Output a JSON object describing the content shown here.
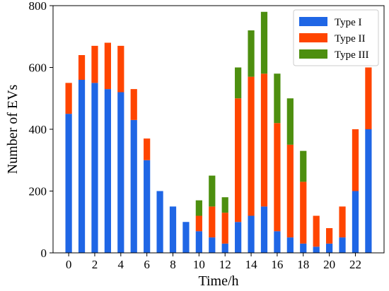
{
  "chart_data": {
    "type": "bar",
    "stacked": true,
    "x": [
      0,
      1,
      2,
      3,
      4,
      5,
      6,
      7,
      8,
      9,
      10,
      11,
      12,
      13,
      14,
      15,
      16,
      17,
      18,
      19,
      20,
      21,
      22,
      23
    ],
    "series": [
      {
        "name": "Type I",
        "color": "#1f66e5",
        "values": [
          450,
          560,
          550,
          530,
          520,
          430,
          300,
          200,
          150,
          100,
          70,
          50,
          30,
          100,
          120,
          150,
          70,
          50,
          30,
          20,
          30,
          50,
          200,
          400
        ]
      },
      {
        "name": "Type II",
        "color": "#ff4500",
        "values": [
          100,
          80,
          120,
          150,
          150,
          100,
          70,
          0,
          0,
          0,
          50,
          100,
          100,
          400,
          450,
          430,
          350,
          300,
          200,
          100,
          50,
          100,
          200,
          200
        ]
      },
      {
        "name": "Type III",
        "color": "#4d8f0f",
        "values": [
          0,
          0,
          0,
          0,
          0,
          0,
          0,
          0,
          0,
          0,
          50,
          100,
          50,
          100,
          150,
          200,
          160,
          150,
          100,
          0,
          0,
          0,
          0,
          0
        ]
      }
    ],
    "xlabel": "Time/h",
    "ylabel": "Number of EVs",
    "xticks": [
      "0",
      "2",
      "4",
      "6",
      "8",
      "10",
      "12",
      "14",
      "16",
      "18",
      "20",
      "22"
    ],
    "yticks": [
      "0",
      "200",
      "400",
      "600",
      "800"
    ],
    "ylim": [
      0,
      800
    ],
    "xlim": [
      -1.2,
      24.2
    ],
    "grid": false,
    "legend_position": "top-right"
  }
}
